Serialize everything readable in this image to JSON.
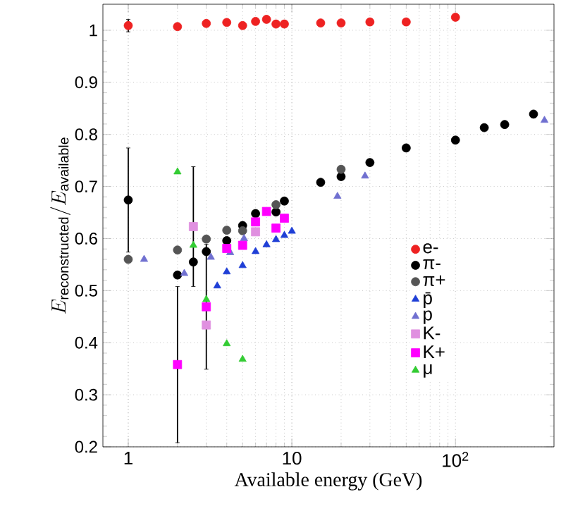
{
  "chart_data": {
    "type": "scatter",
    "xlabel": "Available energy (GeV)",
    "ylabel": "E_{\\mathrm{reconstructed}}/E_{\\mathrm{available}}",
    "log": "x",
    "grid": true,
    "legend": "right",
    "xlim": [
      0.7,
      400
    ],
    "ylim": [
      0.2,
      1.05
    ],
    "xticks": [
      {
        "value": 1,
        "label": "1"
      },
      {
        "value": 10,
        "label": "10"
      },
      {
        "value": 100,
        "label": "10$^{2}$"
      }
    ],
    "yticks": [
      0.2,
      0.3,
      0.4,
      0.5,
      0.6,
      0.7,
      0.8,
      0.9,
      1
    ],
    "series": [
      {
        "name": "e-",
        "color": "#ee2222",
        "marker": "circle",
        "x": [
          1,
          2,
          3,
          4,
          5,
          6,
          7,
          8,
          9,
          15,
          20,
          30,
          50,
          100
        ],
        "values": [
          1.009,
          1.007,
          1.013,
          1.015,
          1.009,
          1.017,
          1.021,
          1.012,
          1.012,
          1.014,
          1.014,
          1.016,
          1.016,
          1.025
        ],
        "errors": [
          0.012,
          null,
          null,
          null,
          null,
          null,
          null,
          null,
          null,
          null,
          null,
          null,
          null,
          null
        ]
      },
      {
        "name": "π-",
        "color": "#000000",
        "marker": "circle",
        "x": [
          1,
          2,
          2.5,
          3,
          4,
          5,
          6,
          7,
          8,
          9,
          15,
          20,
          30,
          50,
          100,
          150,
          200,
          300
        ],
        "values": [
          0.674,
          0.53,
          0.555,
          0.575,
          0.596,
          0.625,
          0.648,
          null,
          0.651,
          0.672,
          0.708,
          0.719,
          0.746,
          0.774,
          0.789,
          0.813,
          0.819,
          0.839
        ],
        "errors": [
          0.1,
          null,
          null,
          null,
          null,
          null,
          null,
          null,
          null,
          null,
          null,
          null,
          null,
          null,
          null,
          null,
          null,
          null
        ]
      },
      {
        "name": "π+",
        "color": "#555555",
        "marker": "circle",
        "x": [
          1,
          2,
          3,
          4,
          5,
          8,
          20
        ],
        "values": [
          0.56,
          0.578,
          0.599,
          0.616,
          0.615,
          0.665,
          0.733
        ]
      },
      {
        "name": "p̄",
        "color": "#1f3fd6",
        "marker": "triangle",
        "x": [
          3.5,
          4,
          5,
          6,
          7,
          8,
          9,
          10
        ],
        "values": [
          0.509,
          0.536,
          0.548,
          0.575,
          0.588,
          0.598,
          0.606,
          0.614
        ]
      },
      {
        "name": "p",
        "color": "#7070d0",
        "marker": "triangle",
        "x": [
          1.25,
          2.2,
          3.2,
          4.2,
          5.1,
          8,
          19,
          28,
          350
        ],
        "values": [
          0.56,
          0.533,
          0.564,
          0.573,
          0.6,
          null,
          0.681,
          0.72,
          0.827
        ]
      },
      {
        "name": "K-",
        "color": "#e090e0",
        "marker": "square",
        "x": [
          2.5,
          3,
          6
        ],
        "values": [
          0.623,
          0.434,
          0.613
        ],
        "errors": [
          0.115,
          null,
          null
        ]
      },
      {
        "name": "K+",
        "color": "#ff00ff",
        "marker": "square",
        "x": [
          2,
          3,
          4,
          5,
          6,
          7,
          8,
          9
        ],
        "values": [
          0.358,
          0.469,
          0.581,
          0.587,
          0.632,
          0.652,
          0.62,
          0.639
        ],
        "errors": [
          0.15,
          0.12,
          null,
          null,
          null,
          null,
          null,
          null
        ]
      },
      {
        "name": "μ",
        "color": "#33cc33",
        "marker": "triangle",
        "x": [
          2,
          2.5,
          3,
          4,
          5
        ],
        "values": [
          0.728,
          0.587,
          0.483,
          0.398,
          0.368
        ]
      }
    ]
  }
}
